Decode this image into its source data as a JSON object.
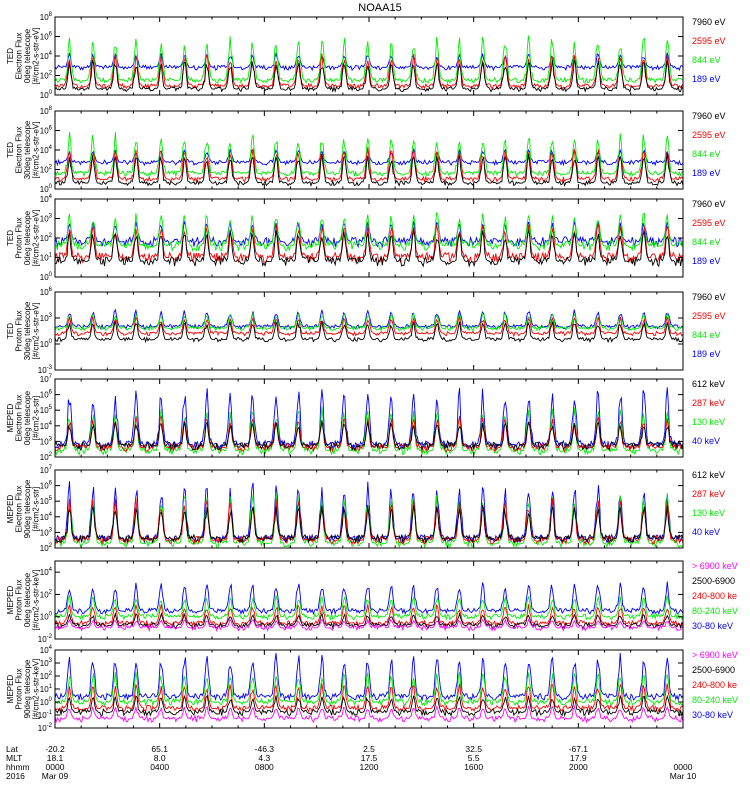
{
  "title": "NOAA15",
  "colors": {
    "blue": "#0000ff",
    "red": "#ff0000",
    "green": "#00ee00",
    "black": "#000000",
    "magenta": "#ff00ff"
  },
  "panels": [
    {
      "ylabel": [
        "TED",
        "Electron Flux",
        "0deg telescope",
        "[#/cm2-s-str-eV]"
      ],
      "yticks": [
        {
          "exp": 8,
          "label": "10^8"
        },
        {
          "exp": 6,
          "label": "10^6"
        },
        {
          "exp": 4,
          "label": "10^4"
        },
        {
          "exp": 2,
          "label": "10^2"
        },
        {
          "exp": 0,
          "label": "10^0"
        }
      ],
      "ylim_exp": [
        0,
        8
      ],
      "legend": [
        {
          "label": "7960 eV",
          "color": "black"
        },
        {
          "label": "2595 eV",
          "color": "red"
        },
        {
          "label": "844 eV",
          "color": "green"
        },
        {
          "label": "189 eV",
          "color": "blue"
        }
      ]
    },
    {
      "ylabel": [
        "TED",
        "Electron Flux",
        "30deg telescope",
        "[#/cm2-s-str-eV]"
      ],
      "yticks": [
        {
          "exp": 8,
          "label": "10^8"
        },
        {
          "exp": 6,
          "label": "10^6"
        },
        {
          "exp": 4,
          "label": "10^4"
        },
        {
          "exp": 2,
          "label": "10^2"
        },
        {
          "exp": 0,
          "label": "10^0"
        }
      ],
      "ylim_exp": [
        0,
        8
      ],
      "legend": [
        {
          "label": "7960 eV",
          "color": "black"
        },
        {
          "label": "2595 eV",
          "color": "red"
        },
        {
          "label": "844 eV",
          "color": "green"
        },
        {
          "label": "189 eV",
          "color": "blue"
        }
      ]
    },
    {
      "ylabel": [
        "TED",
        "Proton Flux",
        "0deg telescope",
        "[#/cm2-s-str-eV]"
      ],
      "yticks": [
        {
          "exp": 4,
          "label": "10^4"
        },
        {
          "exp": 3,
          "label": "10^3"
        },
        {
          "exp": 2,
          "label": "10^2"
        },
        {
          "exp": 1,
          "label": "10^1"
        },
        {
          "exp": 0,
          "label": "10^0"
        }
      ],
      "ylim_exp": [
        0,
        4
      ],
      "legend": [
        {
          "label": "7960 eV",
          "color": "black"
        },
        {
          "label": "2595 eV",
          "color": "red"
        },
        {
          "label": "844 eV",
          "color": "green"
        },
        {
          "label": "189 eV",
          "color": "blue"
        }
      ]
    },
    {
      "ylabel": [
        "TED",
        "Proton Flux",
        "30deg telescope",
        "[#/cm2-s-str-eV]"
      ],
      "yticks": [
        {
          "exp": 6,
          "label": "10^6"
        },
        {
          "exp": 3,
          "label": "10^3"
        },
        {
          "exp": 0,
          "label": "10^0"
        },
        {
          "exp": -3,
          "label": "10^-3"
        }
      ],
      "ylim_exp": [
        -3,
        6
      ],
      "legend": [
        {
          "label": "7960 eV",
          "color": "black"
        },
        {
          "label": "2595 eV",
          "color": "red"
        },
        {
          "label": "844 eV",
          "color": "green"
        },
        {
          "label": "189 eV",
          "color": "blue"
        }
      ]
    },
    {
      "ylabel": [
        "MEPED",
        "Electron Flux",
        "0deg telescope",
        "[#/cm2-s-str]"
      ],
      "yticks": [
        {
          "exp": 7,
          "label": "10^7"
        },
        {
          "exp": 6,
          "label": "10^6"
        },
        {
          "exp": 5,
          "label": "10^5"
        },
        {
          "exp": 4,
          "label": "10^4"
        },
        {
          "exp": 3,
          "label": "10^3"
        },
        {
          "exp": 2,
          "label": "10^2"
        }
      ],
      "ylim_exp": [
        2,
        7
      ],
      "legend": [
        {
          "label": "612 keV",
          "color": "black"
        },
        {
          "label": "287 keV",
          "color": "red"
        },
        {
          "label": "130 keV",
          "color": "green"
        },
        {
          "label": "40 keV",
          "color": "blue"
        }
      ]
    },
    {
      "ylabel": [
        "MEPED",
        "Electron Flux",
        "90deg telescope",
        "[#/cm2-s-str]"
      ],
      "yticks": [
        {
          "exp": 7,
          "label": "10^7"
        },
        {
          "exp": 6,
          "label": "10^6"
        },
        {
          "exp": 5,
          "label": "10^5"
        },
        {
          "exp": 4,
          "label": "10^4"
        },
        {
          "exp": 3,
          "label": "10^3"
        },
        {
          "exp": 2,
          "label": "10^2"
        }
      ],
      "ylim_exp": [
        2,
        7
      ],
      "legend": [
        {
          "label": "612 keV",
          "color": "black"
        },
        {
          "label": "287 keV",
          "color": "red"
        },
        {
          "label": "130 keV",
          "color": "green"
        },
        {
          "label": "40 keV",
          "color": "blue"
        }
      ]
    },
    {
      "ylabel": [
        "MEPED",
        "Proton Flux",
        "0deg telescope",
        "[#/cm2-s-str-keV]"
      ],
      "yticks": [
        {
          "exp": 4,
          "label": "10^4"
        },
        {
          "exp": 2,
          "label": "10^2"
        },
        {
          "exp": 0,
          "label": "10^0"
        },
        {
          "exp": -2,
          "label": "10^-2"
        }
      ],
      "ylim_exp": [
        -2,
        5
      ],
      "legend": [
        {
          "label": "> 6900 keV",
          "color": "magenta"
        },
        {
          "label": "2500-6900",
          "color": "black"
        },
        {
          "label": "240-800 ke",
          "color": "red"
        },
        {
          "label": "80-240 keV",
          "color": "green"
        },
        {
          "label": "30-80 keV",
          "color": "blue"
        }
      ]
    },
    {
      "ylabel": [
        "MEPED",
        "Proton Flux",
        "90deg telescope",
        "[#/cm2-s-str-keV]"
      ],
      "yticks": [
        {
          "exp": 4,
          "label": "10^4"
        },
        {
          "exp": 3,
          "label": "10^3"
        },
        {
          "exp": 2,
          "label": "10^2"
        },
        {
          "exp": 1,
          "label": "10^1"
        },
        {
          "exp": 0,
          "label": "10^0"
        },
        {
          "exp": -1,
          "label": "10^-1"
        },
        {
          "exp": -2,
          "label": "10^-2"
        }
      ],
      "ylim_exp": [
        -2,
        4
      ],
      "legend": [
        {
          "label": "> 6900 keV",
          "color": "magenta"
        },
        {
          "label": "2500-6900",
          "color": "black"
        },
        {
          "label": "240-800 ke",
          "color": "red"
        },
        {
          "label": "80-240 keV",
          "color": "green"
        },
        {
          "label": "30-80 keV",
          "color": "blue"
        }
      ]
    }
  ],
  "xaxis": {
    "row_labels": [
      "Lat",
      "MLT",
      "hhmm",
      "2016"
    ],
    "ticks": [
      {
        "hour": 0,
        "lat": "-20.2",
        "mlt": "18.1",
        "hhmm": "0000",
        "date": "Mar 09"
      },
      {
        "hour": 4,
        "lat": "65.1",
        "mlt": "8.0",
        "hhmm": "0400",
        "date": ""
      },
      {
        "hour": 8,
        "lat": "-46.3",
        "mlt": "4.3",
        "hhmm": "0800",
        "date": ""
      },
      {
        "hour": 12,
        "lat": "2.5",
        "mlt": "17.5",
        "hhmm": "1200",
        "date": ""
      },
      {
        "hour": 16,
        "lat": "32.5",
        "mlt": "5.5",
        "hhmm": "1600",
        "date": ""
      },
      {
        "hour": 20,
        "lat": "-67.1",
        "mlt": "17.9",
        "hhmm": "2000",
        "date": ""
      },
      {
        "hour": 24,
        "lat": "",
        "mlt": "",
        "hhmm": "0000",
        "date": "Mar 10"
      }
    ],
    "xlim_hours": [
      0,
      24
    ]
  },
  "chart_data": {
    "type": "line",
    "title": "NOAA15",
    "x_unit": "hour of day (2016 Mar 09 00:00 to Mar 10 00:00)",
    "xlim": [
      0,
      24
    ],
    "y_scale": "log",
    "approx_pass_peak_hours": [
      0.55,
      1.45,
      2.3,
      3.1,
      4.05,
      4.95,
      5.8,
      6.7,
      7.55,
      8.45,
      9.3,
      10.2,
      11.05,
      11.95,
      12.85,
      13.7,
      14.6,
      15.45,
      16.35,
      17.2,
      18.1,
      19.0,
      19.85,
      20.75,
      21.6,
      22.5,
      23.4
    ],
    "series_levels_log10": [
      {
        "panel": 1,
        "baseline": {
          "189 eV": 2.8,
          "844 eV": 1.5,
          "2595 eV": 0.9,
          "7960 eV": 0.6
        },
        "peak": {
          "189 eV": 4.2,
          "844 eV": 5.8,
          "2595 eV": 4.0,
          "7960 eV": 3.5
        }
      },
      {
        "panel": 2,
        "baseline": {
          "189 eV": 2.7,
          "844 eV": 1.6,
          "2595 eV": 1.0,
          "7960 eV": 0.6
        },
        "peak": {
          "189 eV": 4.0,
          "844 eV": 5.5,
          "2595 eV": 4.0,
          "7960 eV": 3.4
        }
      },
      {
        "panel": 3,
        "baseline": {
          "189 eV": 1.8,
          "844 eV": 1.6,
          "2595 eV": 1.0,
          "7960 eV": 0.8
        },
        "peak": {
          "189 eV": 2.8,
          "844 eV": 3.2,
          "2595 eV": 2.6,
          "7960 eV": 2.3
        }
      },
      {
        "panel": 4,
        "baseline": {
          "189 eV": 2.0,
          "844 eV": 1.8,
          "2595 eV": 1.2,
          "7960 eV": 0.5
        },
        "peak": {
          "189 eV": 3.8,
          "844 eV": 3.5,
          "2595 eV": 3.0,
          "7960 eV": 2.5
        }
      },
      {
        "panel": 5,
        "baseline": {
          "40 keV": 2.8,
          "130 keV": 2.4,
          "287 keV": 2.6,
          "612 keV": 2.7
        },
        "peak": {
          "40 keV": 6.2,
          "130 keV": 5.0,
          "287 keV": 4.5,
          "612 keV": 4.2
        }
      },
      {
        "panel": 6,
        "baseline": {
          "40 keV": 2.6,
          "130 keV": 2.3,
          "287 keV": 2.5,
          "612 keV": 2.6
        },
        "peak": {
          "40 keV": 6.0,
          "130 keV": 5.3,
          "287 keV": 5.0,
          "612 keV": 4.6
        }
      },
      {
        "panel": 7,
        "baseline": {
          "30-80 keV": 0.5,
          "80-240 keV": 0.0,
          "240-800 ke": -0.6,
          "2500-6900": -0.8,
          "> 6900 keV": -1.0
        },
        "peak": {
          "30-80 keV": 3.0,
          "80-240 keV": 1.8,
          "240-800 ke": 1.0,
          "2500-6900": 0.2,
          "> 6900 keV": -0.3
        }
      },
      {
        "panel": 8,
        "baseline": {
          "30-80 keV": 0.4,
          "80-240 keV": 0.0,
          "240-800 ke": -0.5,
          "2500-6900": -0.8,
          "> 6900 keV": -1.3
        },
        "peak": {
          "30-80 keV": 3.5,
          "80-240 keV": 2.2,
          "240-800 ke": 1.3,
          "2500-6900": 0.4,
          "> 6900 keV": -0.4
        }
      }
    ],
    "grid": false,
    "legend_position": "right"
  }
}
